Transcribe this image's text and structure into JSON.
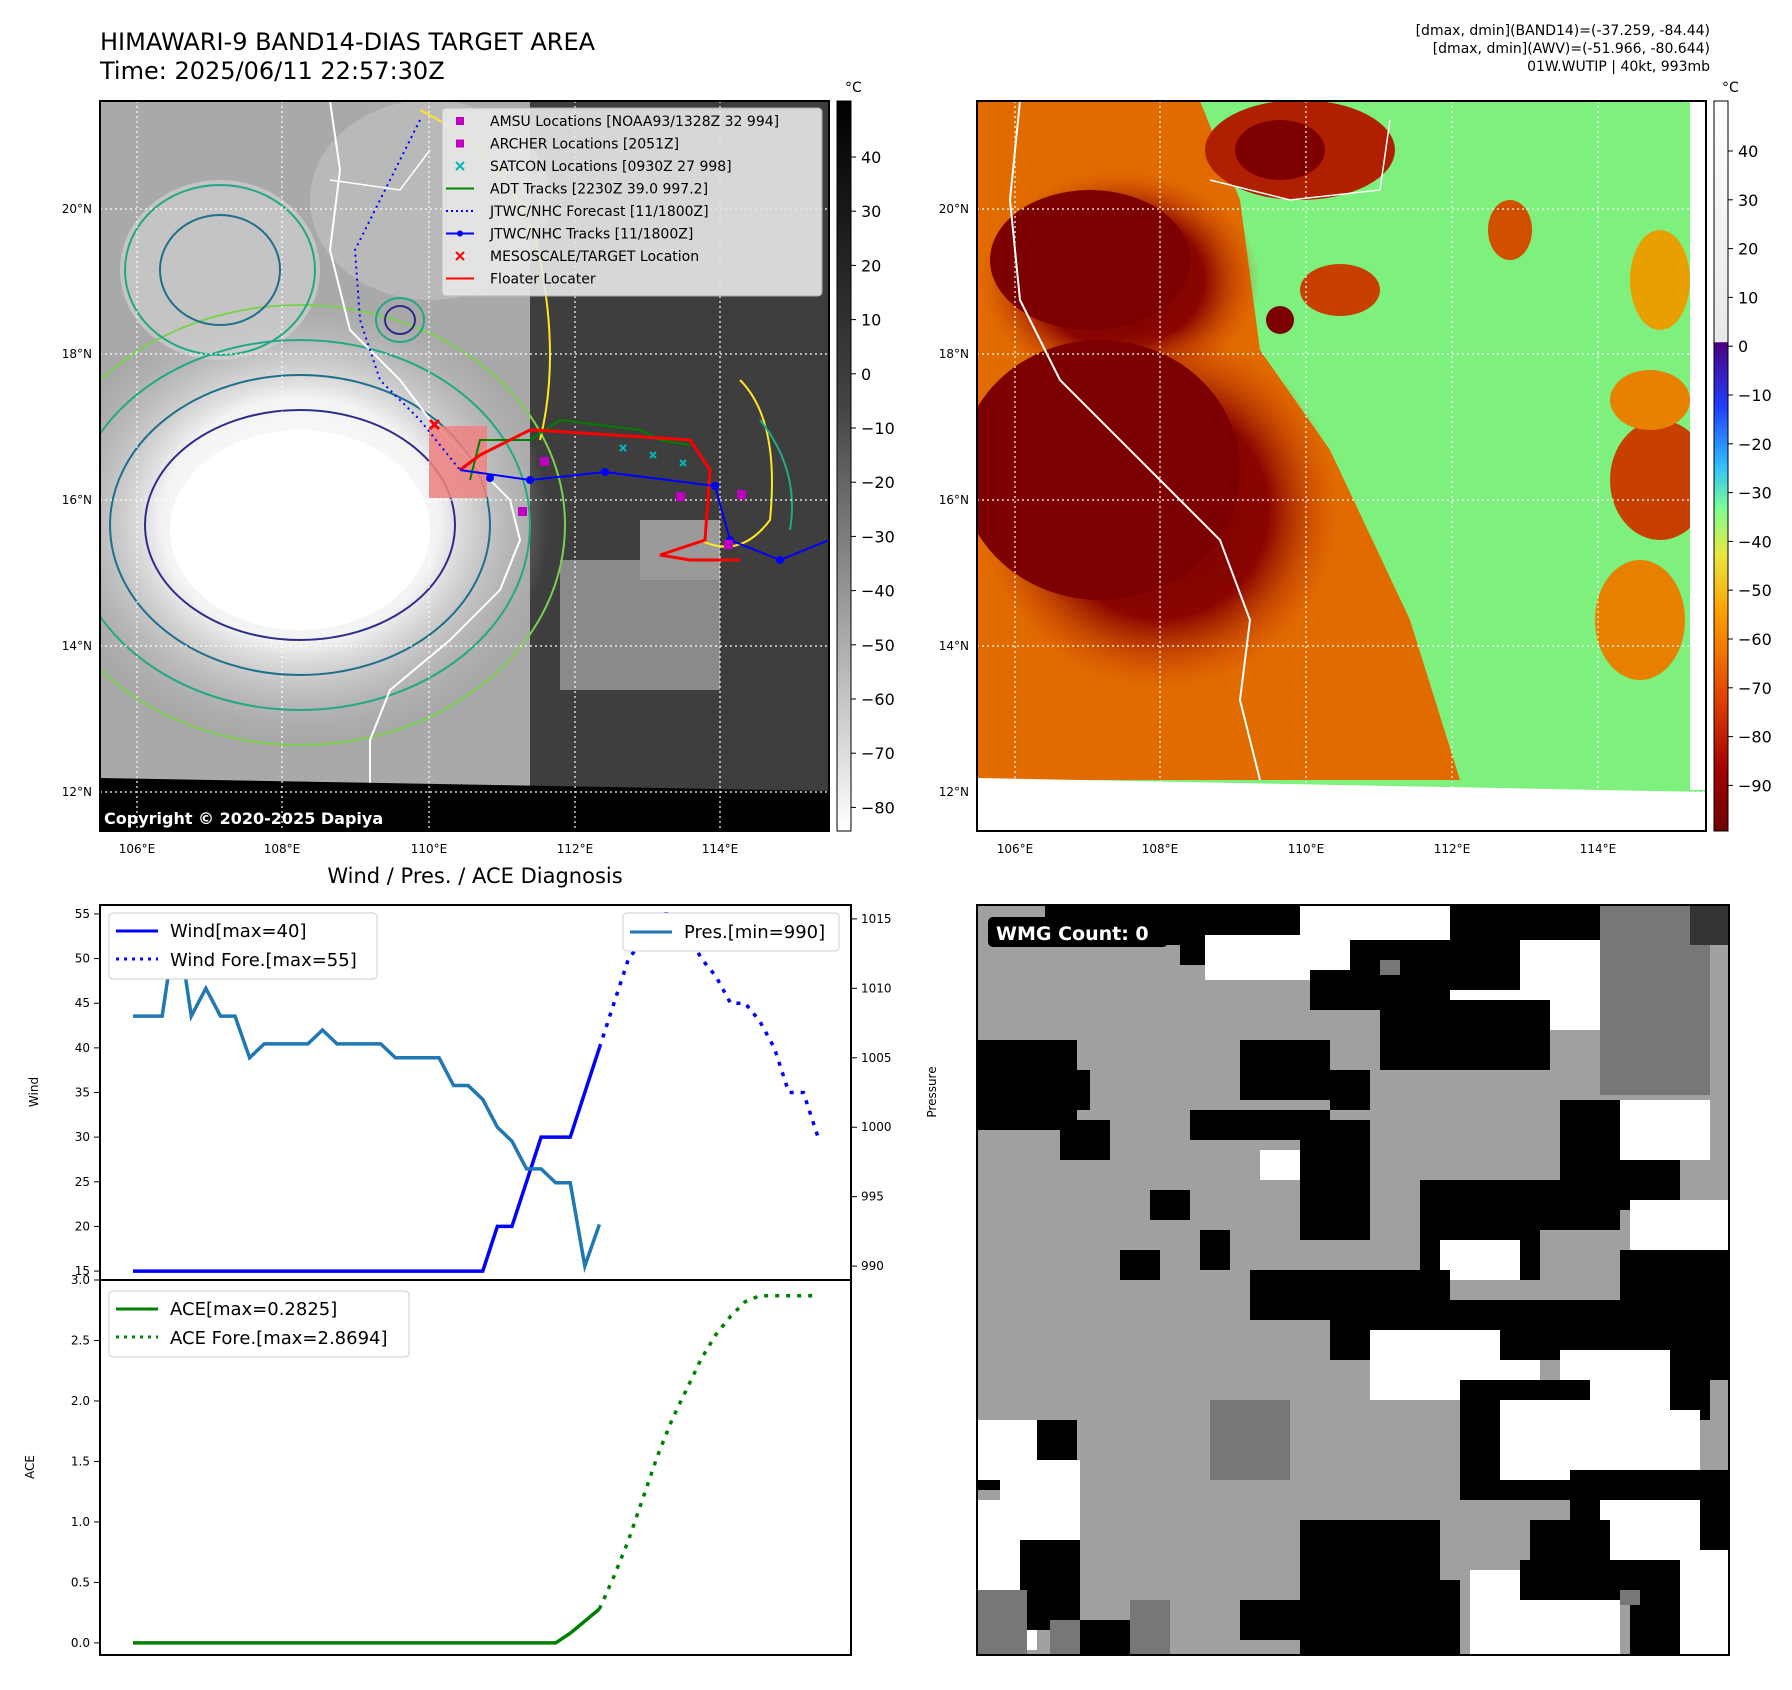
{
  "header": {
    "title_line1": "HIMAWARI-9 BAND14-DIAS TARGET AREA",
    "title_line2": "Time: 2025/06/11 22:57:30Z",
    "stats_line1": "[dmax, dmin](BAND14)=(-37.259, -84.44)",
    "stats_line2": "[dmax, dmin](AWV)=(-51.966, -80.644)",
    "stats_line3": "01W.WUTIP | 40kt, 993mb"
  },
  "map_axes": {
    "lon_labels": [
      "106°E",
      "108°E",
      "110°E",
      "112°E",
      "114°E"
    ],
    "lat_labels": [
      "20°N",
      "18°N",
      "16°N",
      "14°N",
      "12°N"
    ],
    "copyright": "Copyright © 2020-2025 Dapiya"
  },
  "colorbar_gray": {
    "unit": "°C",
    "ticks": [
      "40",
      "30",
      "20",
      "10",
      "0",
      "−10",
      "−20",
      "−30",
      "−40",
      "−50",
      "−60",
      "−70",
      "−80"
    ]
  },
  "colorbar_awv": {
    "unit": "°C",
    "ticks": [
      "40",
      "30",
      "20",
      "10",
      "0",
      "−10",
      "−20",
      "−30",
      "−40",
      "−50",
      "−60",
      "−70",
      "−80",
      "−90"
    ]
  },
  "legend": {
    "items": [
      {
        "label": "AMSU Locations [NOAA93/1328Z 32 994]",
        "color": "#c000c0",
        "marker": "square"
      },
      {
        "label": "ARCHER Locations [2051Z]",
        "color": "#c000c0",
        "marker": "square"
      },
      {
        "label": "SATCON Locations [0930Z 27 998]",
        "color": "#00b8b8",
        "marker": "x"
      },
      {
        "label": "ADT Tracks [2230Z 39.0 997.2]",
        "color": "#008000",
        "marker": "line"
      },
      {
        "label": "JTWC/NHC Forecast [11/1800Z]",
        "color": "#0000ff",
        "marker": "dotted"
      },
      {
        "label": "JTWC/NHC Tracks [11/1800Z]",
        "color": "#0000ff",
        "marker": "line-dot"
      },
      {
        "label": "MESOSCALE/TARGET Location",
        "color": "#ff0000",
        "marker": "x"
      },
      {
        "label": "Floater Locater",
        "color": "#ff0000",
        "marker": "line"
      }
    ]
  },
  "diagnosis": {
    "title": "Wind / Pres. / ACE Diagnosis",
    "wind_ylabel": "Wind",
    "pres_ylabel": "Pressure",
    "ace_ylabel": "ACE",
    "legend_wind": "Wind[max=40]",
    "legend_wind_fore": "Wind Fore.[max=55]",
    "legend_pres": "Pres.[min=990]",
    "legend_ace": "ACE[max=0.2825]",
    "legend_ace_fore": "ACE Fore.[max=2.8694]",
    "wind_ticks": [
      "55",
      "50",
      "45",
      "40",
      "35",
      "30",
      "25",
      "20",
      "15"
    ],
    "pres_ticks": [
      "1015",
      "1010",
      "1005",
      "1000",
      "995",
      "990"
    ],
    "ace_ticks": [
      "3.0",
      "2.5",
      "2.0",
      "1.5",
      "1.0",
      "0.5",
      "0.0"
    ]
  },
  "wmg": {
    "label": "WMG Count: 0"
  },
  "chart_data": [
    {
      "type": "line",
      "title": "Wind / Pres. / ACE Diagnosis",
      "ylabel": "Wind",
      "ylim": [
        14,
        56
      ],
      "series": [
        {
          "name": "Wind[max=40]",
          "color": "#0000ff",
          "style": "solid",
          "x": [
            0,
            1,
            2,
            3,
            4,
            5,
            6,
            7,
            8,
            9,
            10,
            11,
            12,
            13,
            14,
            15,
            16,
            17,
            18,
            19,
            20,
            21,
            22,
            23,
            24,
            25,
            26,
            27,
            28,
            29,
            30,
            31,
            32
          ],
          "values": [
            15,
            15,
            15,
            15,
            15,
            15,
            15,
            15,
            15,
            15,
            15,
            15,
            15,
            15,
            15,
            15,
            15,
            15,
            15,
            15,
            15,
            15,
            15,
            15,
            15,
            20,
            20,
            25,
            30,
            30,
            30,
            35,
            40
          ]
        },
        {
          "name": "Wind Fore.[max=55]",
          "color": "#0000ff",
          "style": "dotted",
          "x": [
            32,
            33,
            34,
            35,
            36,
            37,
            38,
            39,
            40,
            41,
            42,
            43,
            44,
            45,
            46,
            47
          ],
          "values": [
            40,
            45,
            50,
            52,
            55,
            55,
            53,
            50,
            48,
            45,
            45,
            43,
            40,
            35,
            35,
            30
          ]
        }
      ]
    },
    {
      "type": "line",
      "ylabel": "Pressure",
      "ylim": [
        989,
        1016
      ],
      "series": [
        {
          "name": "Pres.[min=990]",
          "color": "#1f77b4",
          "style": "solid",
          "x": [
            0,
            1,
            2,
            3,
            4,
            5,
            6,
            7,
            8,
            9,
            10,
            11,
            12,
            13,
            14,
            15,
            16,
            17,
            18,
            19,
            20,
            21,
            22,
            23,
            24,
            25,
            26,
            27,
            28,
            29,
            30,
            31,
            32
          ],
          "values": [
            1008,
            1008,
            1008,
            1015,
            1008,
            1010,
            1008,
            1008,
            1005,
            1006,
            1006,
            1006,
            1006,
            1007,
            1006,
            1006,
            1006,
            1006,
            1005,
            1005,
            1005,
            1005,
            1003,
            1003,
            1002,
            1000,
            999,
            997,
            997,
            996,
            996,
            990,
            993
          ]
        }
      ]
    },
    {
      "type": "line",
      "ylabel": "ACE",
      "ylim": [
        -0.1,
        3.0
      ],
      "series": [
        {
          "name": "ACE[max=0.2825]",
          "color": "#008000",
          "style": "solid",
          "x": [
            0,
            4,
            8,
            12,
            16,
            20,
            24,
            28,
            29,
            30,
            31,
            32
          ],
          "values": [
            0,
            0,
            0,
            0,
            0,
            0,
            0,
            0,
            0,
            0.08,
            0.18,
            0.28
          ]
        },
        {
          "name": "ACE Fore.[max=2.8694]",
          "color": "#008000",
          "style": "dotted",
          "x": [
            32,
            33,
            34,
            35,
            36,
            37,
            38,
            39,
            40,
            41,
            42,
            43,
            44,
            45,
            46,
            47
          ],
          "values": [
            0.28,
            0.55,
            0.85,
            1.2,
            1.55,
            1.85,
            2.1,
            2.35,
            2.55,
            2.7,
            2.82,
            2.87,
            2.87,
            2.87,
            2.87,
            2.87
          ]
        }
      ]
    }
  ]
}
